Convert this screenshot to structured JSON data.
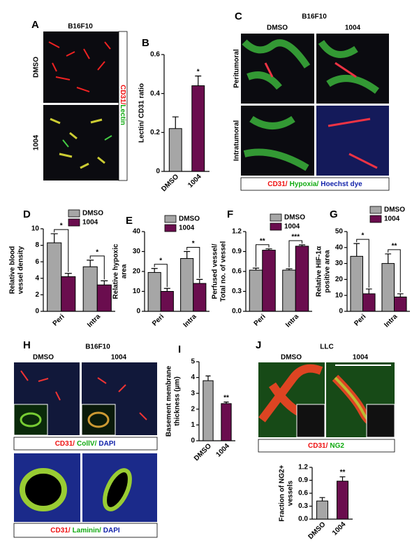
{
  "figure": {
    "A": {
      "letter": "A",
      "cell_line": "B16F10",
      "rows": [
        "DMSO",
        "1004"
      ],
      "stain": [
        "CD31/",
        "Lectin"
      ]
    },
    "C": {
      "letter": "C",
      "cell_line": "B16F10",
      "columns": [
        "DMSO",
        "1004"
      ],
      "rows": [
        "Peritumoral",
        "Intratumoral"
      ],
      "stain": [
        "CD31/",
        "Hypoxia/",
        "Hoechst dye"
      ]
    },
    "H": {
      "letter": "H",
      "cell_line": "B16F10",
      "columns": [
        "DMSO",
        "1004"
      ],
      "stain_top": [
        "CD31/",
        "CollV/",
        "DAPI"
      ],
      "stain_bottom": [
        "CD31/",
        "Laminin/",
        "DAPI"
      ]
    },
    "J": {
      "letter": "J",
      "cell_line": "LLC",
      "columns": [
        "DMSO",
        "1004"
      ],
      "stain": [
        "CD31/",
        "NG2"
      ]
    }
  },
  "chart_data": [
    {
      "type": "bar",
      "panel": "B",
      "y_label": [
        "Lectin/ CD31 ratio"
      ],
      "categories": [
        "DMSO",
        "1004"
      ],
      "values": [
        0.22,
        0.44
      ],
      "errors": [
        0.06,
        0.05
      ],
      "colors": [
        "#a6a6a6",
        "#6a0d4e"
      ],
      "ylim": [
        0,
        0.6
      ],
      "yticks": [
        0,
        0.2,
        0.4,
        0.6
      ],
      "significance": [
        "*"
      ]
    },
    {
      "type": "grouped_bar",
      "panel": "D",
      "y_label": [
        "Relative blood",
        "vessel density"
      ],
      "categories": [
        "Peri",
        "Intra"
      ],
      "series": [
        {
          "name": "DMSO",
          "color": "#a6a6a6",
          "values": [
            8.3,
            5.4
          ],
          "errors": [
            1.1,
            0.8
          ]
        },
        {
          "name": "1004",
          "color": "#6a0d4e",
          "values": [
            4.2,
            3.2
          ],
          "errors": [
            0.4,
            0.5
          ]
        }
      ],
      "ylim": [
        0,
        10
      ],
      "yticks": [
        0,
        2,
        4,
        6,
        8,
        10
      ],
      "significance": [
        "*",
        "*"
      ]
    },
    {
      "type": "grouped_bar",
      "panel": "E",
      "y_label": [
        "Relative hypoxic",
        "area"
      ],
      "categories": [
        "Peri",
        "Intra"
      ],
      "series": [
        {
          "name": "DMSO",
          "color": "#a6a6a6",
          "values": [
            19.5,
            26.5
          ],
          "errors": [
            2,
            3.5
          ]
        },
        {
          "name": "1004",
          "color": "#6a0d4e",
          "values": [
            10,
            14
          ],
          "errors": [
            1.5,
            2
          ]
        }
      ],
      "ylim": [
        0,
        40
      ],
      "yticks": [
        0,
        10,
        20,
        30,
        40
      ],
      "significance": [
        "*",
        "*"
      ]
    },
    {
      "type": "grouped_bar",
      "panel": "F",
      "y_label": [
        "Perfused vessel/",
        "Total no. of vessel"
      ],
      "categories": [
        "Peri",
        "Intra"
      ],
      "series": [
        {
          "name": "DMSO",
          "color": "#a6a6a6",
          "values": [
            0.62,
            0.62
          ],
          "errors": [
            0.03,
            0.02
          ]
        },
        {
          "name": "1004",
          "color": "#6a0d4e",
          "values": [
            0.92,
            0.98
          ],
          "errors": [
            0.02,
            0.02
          ]
        }
      ],
      "ylim": [
        0,
        1.2
      ],
      "yticks": [
        {
          "value": 0,
          "label": "0.0"
        },
        0.3,
        0.6,
        0.9,
        1.2
      ],
      "significance": [
        "**",
        "***"
      ]
    },
    {
      "type": "grouped_bar",
      "panel": "G",
      "y_label": [
        "Relative HIF-1α",
        "positive area"
      ],
      "categories": [
        "Peri",
        "Intra"
      ],
      "series": [
        {
          "name": "DMSO",
          "color": "#a6a6a6",
          "values": [
            34.5,
            30
          ],
          "errors": [
            8,
            6
          ]
        },
        {
          "name": "1004",
          "color": "#6a0d4e",
          "values": [
            11,
            9
          ],
          "errors": [
            3,
            2
          ]
        }
      ],
      "ylim": [
        0,
        50
      ],
      "yticks": [
        0,
        10,
        20,
        30,
        40,
        50
      ],
      "significance": [
        "*",
        "**"
      ]
    },
    {
      "type": "bar",
      "panel": "I",
      "y_label": [
        "Basement membrane",
        "thickness (μm)"
      ],
      "categories": [
        "DMSO",
        "1004"
      ],
      "values": [
        3.8,
        2.35
      ],
      "errors": [
        0.3,
        0.1
      ],
      "colors": [
        "#a6a6a6",
        "#6a0d4e"
      ],
      "ylim": [
        0,
        5
      ],
      "yticks": [
        0,
        1,
        2,
        3,
        4,
        5
      ],
      "significance": [
        "**"
      ]
    },
    {
      "type": "bar",
      "y_label": [
        "Fraction of NG2+",
        "vessels"
      ],
      "categories": [
        "DMSO",
        "1004"
      ],
      "values": [
        0.42,
        0.88
      ],
      "errors": [
        0.08,
        0.1
      ],
      "colors": [
        "#a6a6a6",
        "#6a0d4e"
      ],
      "ylim": [
        0,
        1.2
      ],
      "yticks": [
        {
          "value": 0,
          "label": "0.0"
        },
        0.3,
        0.6,
        0.9,
        1.2
      ],
      "significance": [
        "**"
      ]
    }
  ]
}
